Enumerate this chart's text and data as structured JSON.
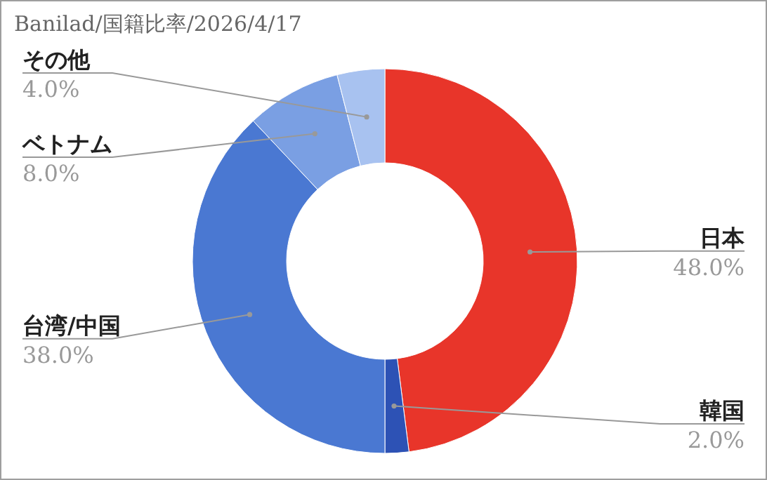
{
  "chart_data": {
    "type": "donut",
    "title": "Banilad/国籍比率/2026/4/17",
    "categories": [
      "日本",
      "韓国",
      "台湾/中国",
      "ベトナム",
      "その他"
    ],
    "values": [
      48,
      2,
      38,
      8,
      4
    ],
    "colors": [
      "#e8352a",
      "#2d52b5",
      "#4a78d2",
      "#7a9fe3",
      "#a8c2f0"
    ],
    "value_labels": [
      "48.0%",
      "2.0%",
      "38.0%",
      "8.0%",
      "4.0%"
    ],
    "legend": false
  }
}
